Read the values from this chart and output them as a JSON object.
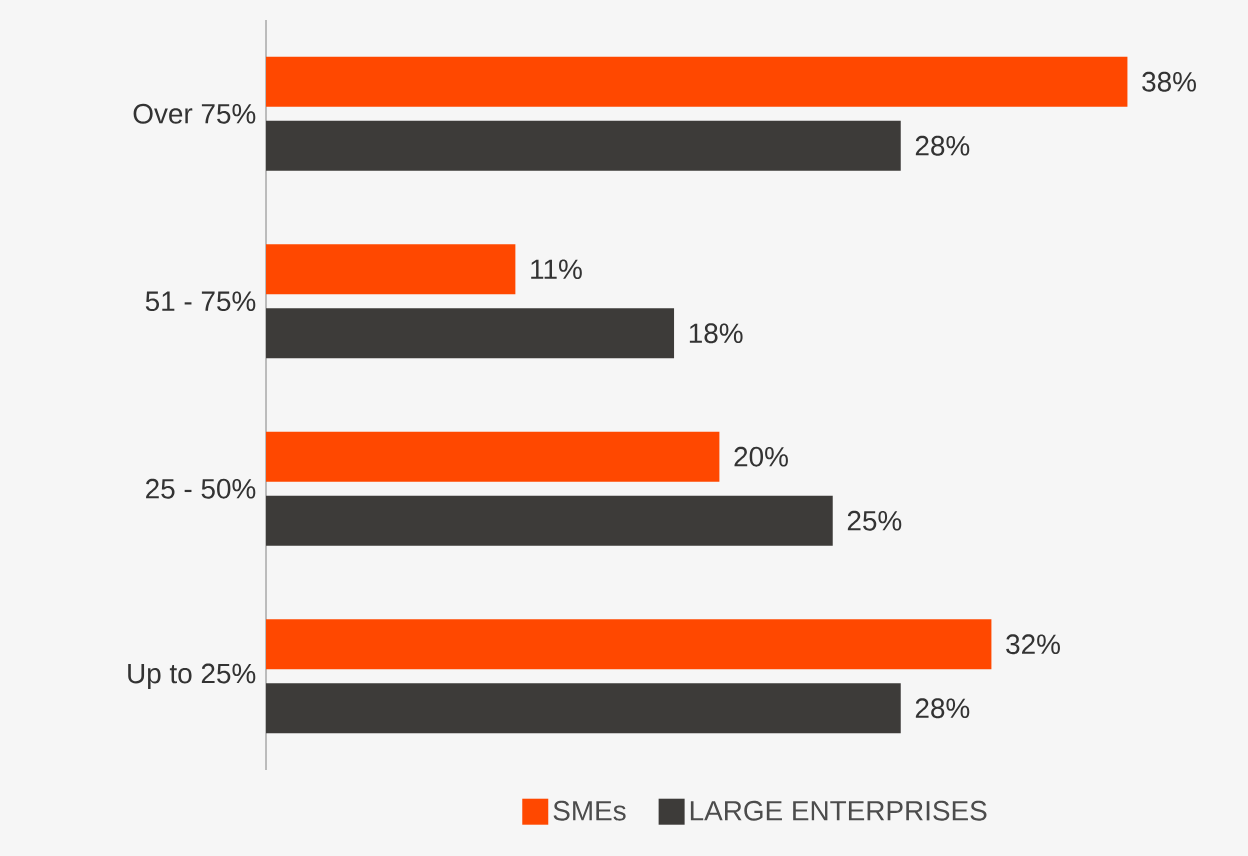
{
  "chart_data": {
    "type": "bar",
    "orientation": "horizontal",
    "categories": [
      "Over 75%",
      "51 - 75%",
      "25 - 50%",
      "Up to 25%"
    ],
    "series": [
      {
        "name": "SMEs",
        "color": "#ff4800",
        "values": [
          38,
          11,
          20,
          32
        ],
        "value_labels": [
          "38%",
          "11%",
          "20%",
          "32%"
        ]
      },
      {
        "name": "LARGE ENTERPRISES",
        "color": "#3d3b39",
        "values": [
          28,
          18,
          25,
          28
        ],
        "value_labels": [
          "28%",
          "18%",
          "25%",
          "28%"
        ]
      }
    ],
    "legend": "bottom"
  }
}
